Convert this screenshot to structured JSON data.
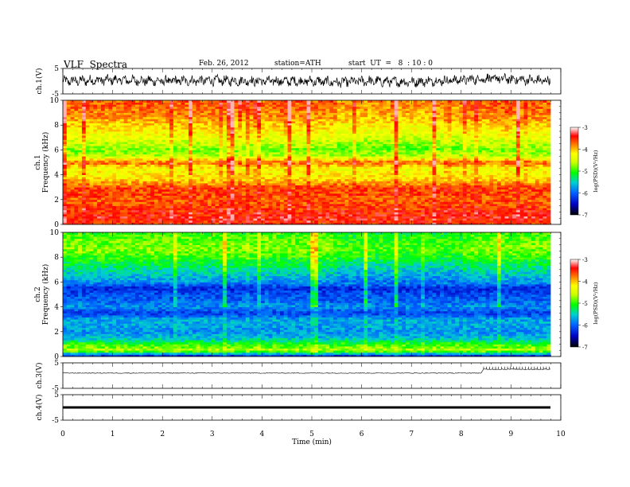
{
  "header": {
    "title": "VLF  Spectra",
    "date": "Feb. 26, 2012",
    "station": "station=ATH",
    "start": "start  UT  =   8  : 10 : 0"
  },
  "colors": {
    "colormap": [
      "#000080",
      "#0000ff",
      "#00a0ff",
      "#00e0c0",
      "#00ff00",
      "#c0ff00",
      "#ffff00",
      "#ffa000",
      "#ff0000",
      "#c00000",
      "#ffffff"
    ],
    "trace": "#000000"
  },
  "chart_data": [
    {
      "type": "line",
      "panel": "ch1-waveform",
      "ylabel": "ch.1(V)",
      "ylim": [
        -5,
        5
      ],
      "yticks": [
        "5",
        "-5"
      ],
      "xlim": [
        0,
        10
      ],
      "data_extent_min": 9.8,
      "series": [
        {
          "values_description_free": true,
          "x": [
            0,
            1,
            2,
            3,
            4,
            5,
            5.5,
            6,
            7,
            8,
            8.5,
            9,
            9.8
          ],
          "y": [
            0,
            0.5,
            0,
            0.3,
            0,
            0,
            -0.5,
            0,
            -0.3,
            0.5,
            1.0,
            0.8,
            0
          ]
        }
      ]
    },
    {
      "type": "heatmap",
      "panel": "ch1-spectrogram",
      "ylabel": "Frequency (kHz)",
      "ylabel2": "ch.1",
      "ylim": [
        0,
        10
      ],
      "yticks": [
        "0",
        "2",
        "4",
        "6",
        "8",
        "10"
      ],
      "xlim": [
        0,
        10
      ],
      "colorbar": {
        "label": "log(PSD)(V²/Hz)",
        "ticks": [
          "-3",
          "-4",
          "-5",
          "-6",
          "-7"
        ],
        "range": [
          -7,
          -3
        ]
      },
      "band_profile_freq_khz": [
        0,
        0.5,
        1,
        1.5,
        2,
        2.5,
        3,
        3.5,
        4,
        4.5,
        5,
        5.5,
        6,
        6.5,
        7,
        7.5,
        8,
        8.5,
        9,
        9.5,
        10
      ],
      "band_profile_logpsd": [
        -3.6,
        -3.4,
        -3.5,
        -3.6,
        -3.7,
        -3.6,
        -3.6,
        -4.0,
        -4.2,
        -4.3,
        -3.7,
        -4.6,
        -4.8,
        -4.6,
        -4.4,
        -4.2,
        -4.1,
        -3.9,
        -3.8,
        -3.7,
        -3.7
      ]
    },
    {
      "type": "heatmap",
      "panel": "ch2-spectrogram",
      "ylabel": "Frequency (kHz)",
      "ylabel2": "ch.2",
      "ylim": [
        0,
        10
      ],
      "yticks": [
        "0",
        "2",
        "4",
        "6",
        "8",
        "10"
      ],
      "xlim": [
        0,
        10
      ],
      "colorbar": {
        "label": "log(PSD)(V²/Hz)",
        "ticks": [
          "-3",
          "-4",
          "-5",
          "-6",
          "-7"
        ],
        "range": [
          -7,
          -3
        ]
      },
      "band_profile_freq_khz": [
        0,
        0.5,
        1,
        1.5,
        2,
        2.5,
        3,
        3.5,
        4,
        4.5,
        5,
        5.5,
        6,
        6.5,
        7,
        7.5,
        8,
        8.5,
        9,
        9.5,
        10
      ],
      "band_profile_logpsd": [
        -6.5,
        -4.6,
        -5.0,
        -5.6,
        -5.8,
        -5.7,
        -5.7,
        -6.2,
        -5.8,
        -6.0,
        -6.1,
        -6.3,
        -5.8,
        -5.6,
        -5.4,
        -5.2,
        -5.0,
        -4.8,
        -4.8,
        -4.9,
        -5.0
      ]
    },
    {
      "type": "line",
      "panel": "ch3-waveform",
      "ylabel": "ch.3(V)",
      "ylim": [
        -5,
        5
      ],
      "yticks": [
        "5",
        "-5"
      ],
      "xlim": [
        0,
        10
      ],
      "series": [
        {
          "x": [
            0,
            8.4,
            8.45,
            9.8
          ],
          "y": [
            1.0,
            1.0,
            2.5,
            2.5
          ]
        }
      ]
    },
    {
      "type": "line",
      "panel": "ch4-waveform",
      "ylabel": "ch.4(V)",
      "ylim": [
        -5,
        5
      ],
      "yticks": [
        "5",
        "-5"
      ],
      "xlim": [
        0,
        10
      ],
      "xlabel": "Time (min)",
      "xticks": [
        "0",
        "1",
        "2",
        "3",
        "4",
        "5",
        "6",
        "7",
        "8",
        "9",
        "10"
      ],
      "series": [
        {
          "x": [
            0,
            9.8
          ],
          "y": [
            0,
            0
          ]
        }
      ]
    }
  ]
}
